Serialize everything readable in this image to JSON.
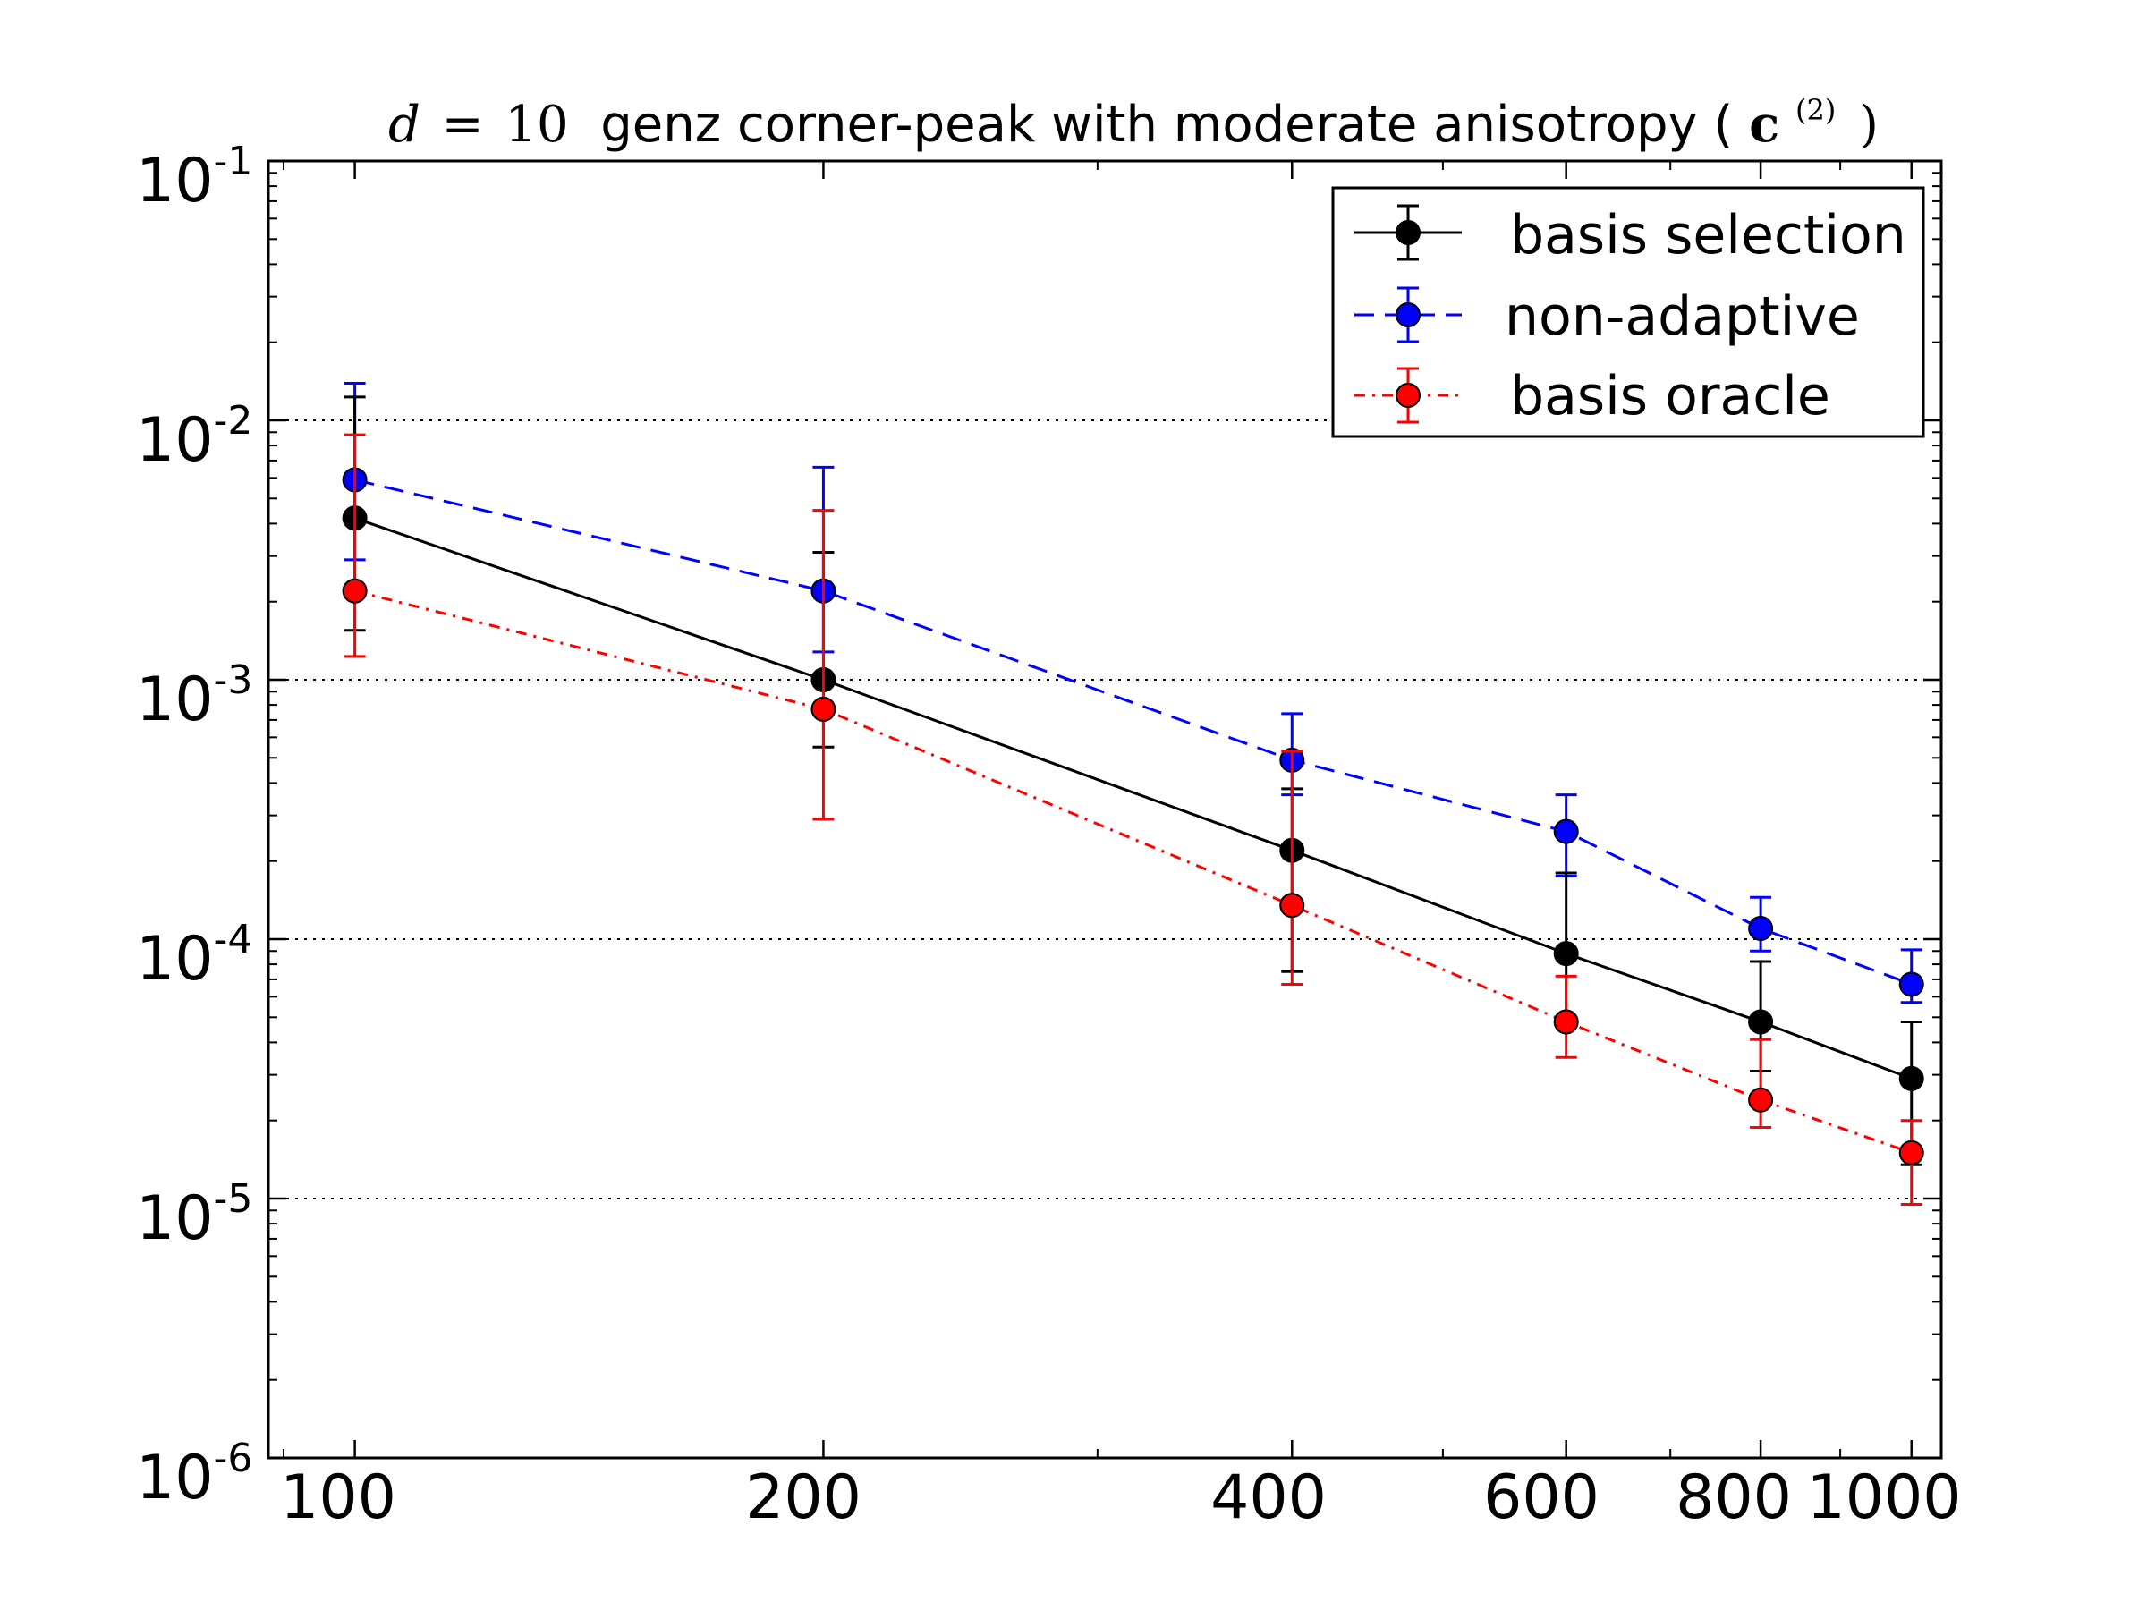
{
  "chart_data": {
    "type": "line",
    "title": {
      "var": "d",
      "eq": "=",
      "num": "10",
      "text": " genz corner-peak with moderate anisotropy (",
      "vec": "c",
      "sup": "(2)",
      "close": ")"
    },
    "xscale": "log",
    "yscale": "log",
    "xlim": [
      88,
      1045
    ],
    "ylim": [
      1e-06,
      0.1
    ],
    "xticks": [
      100,
      200,
      400,
      600,
      800,
      1000
    ],
    "xtick_labels": [
      "100",
      "200",
      "400",
      "600",
      "800",
      "1000"
    ],
    "ytick_labels": [
      {
        "base": "10",
        "exp": "-1"
      },
      {
        "base": "10",
        "exp": "-2"
      },
      {
        "base": "10",
        "exp": "-3"
      },
      {
        "base": "10",
        "exp": "-4"
      },
      {
        "base": "10",
        "exp": "-5"
      },
      {
        "base": "10",
        "exp": "-6"
      }
    ],
    "grid": "horizontal-dotted",
    "legend_position": "top-right",
    "series": [
      {
        "name": "basis selection",
        "color": "#000000",
        "linestyle": "solid",
        "x": [
          100,
          200,
          400,
          600,
          800,
          1000
        ],
        "y": [
          0.0042,
          0.001,
          0.00022,
          8.8e-05,
          4.8e-05,
          2.9e-05
        ],
        "err_low": [
          0.00155,
          0.00055,
          7.5e-05,
          4.6e-05,
          3.1e-05,
          1.35e-05
        ],
        "err_high": [
          0.0123,
          0.0031,
          0.00038,
          0.00018,
          8.2e-05,
          4.8e-05
        ]
      },
      {
        "name": "non-adaptive",
        "color": "#0000ff",
        "linestyle": "dashed",
        "x": [
          100,
          200,
          400,
          600,
          800,
          1000
        ],
        "y": [
          0.0059,
          0.0022,
          0.00049,
          0.00026,
          0.00011,
          6.7e-05
        ],
        "err_low": [
          0.0029,
          0.00128,
          0.00036,
          0.000175,
          9e-05,
          5.7e-05
        ],
        "err_high": [
          0.0139,
          0.0066,
          0.00074,
          0.00036,
          0.000145,
          9.1e-05
        ]
      },
      {
        "name": "basis oracle",
        "color": "#ff0000",
        "linestyle": "dashdot",
        "x": [
          100,
          200,
          400,
          600,
          800,
          1000
        ],
        "y": [
          0.0022,
          0.00077,
          0.000135,
          4.8e-05,
          2.4e-05,
          1.5e-05
        ],
        "err_low": [
          0.00123,
          0.00029,
          6.7e-05,
          3.5e-05,
          1.88e-05,
          9.5e-06
        ],
        "err_high": [
          0.0088,
          0.0045,
          0.00053,
          7.2e-05,
          4.1e-05,
          2e-05
        ]
      }
    ]
  }
}
